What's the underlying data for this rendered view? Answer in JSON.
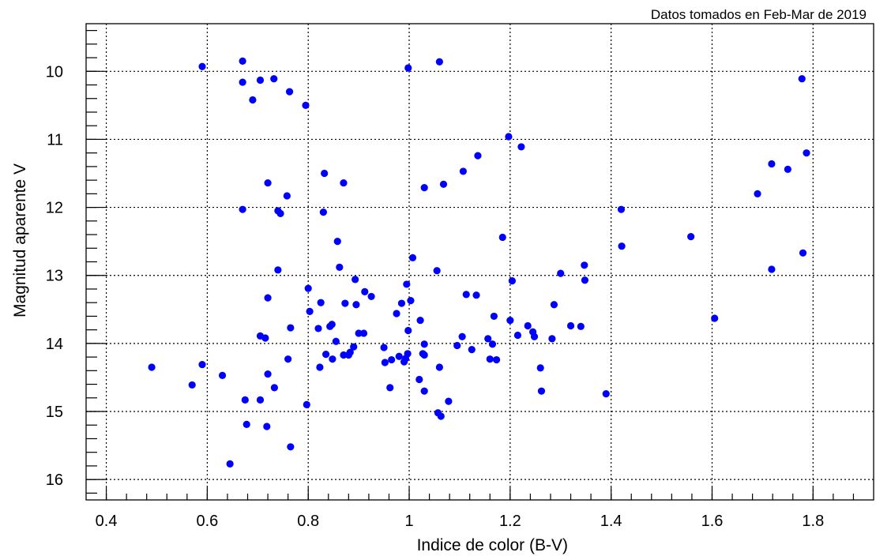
{
  "chart_data": {
    "type": "scatter",
    "subtitle": "Datos tomados en Feb-Mar de 2019",
    "xlabel": "Indice de color (B-V)",
    "ylabel": "Magnitud aparente  V",
    "xlim": [
      0.36,
      1.92
    ],
    "ylim": [
      16.3,
      9.3
    ],
    "y_inverted": true,
    "grid": true,
    "marker_color": "#0000ff",
    "x_ticks": [
      0.4,
      0.6,
      0.8,
      1,
      1.2,
      1.4,
      1.6,
      1.8
    ],
    "x_tick_labels": [
      "0.4",
      "0.6",
      "0.8",
      "1",
      "1.2",
      "1.4",
      "1.6",
      "1.8"
    ],
    "y_ticks": [
      10,
      11,
      12,
      13,
      14,
      15,
      16
    ],
    "y_tick_labels": [
      "10",
      "11",
      "12",
      "13",
      "14",
      "15",
      "16"
    ],
    "points": [
      [
        0.49,
        14.35
      ],
      [
        0.57,
        14.61
      ],
      [
        0.59,
        14.31
      ],
      [
        0.59,
        9.93
      ],
      [
        0.63,
        14.47
      ],
      [
        0.645,
        15.77
      ],
      [
        0.67,
        9.85
      ],
      [
        0.67,
        10.16
      ],
      [
        0.675,
        14.83
      ],
      [
        0.678,
        15.19
      ],
      [
        0.67,
        12.03
      ],
      [
        0.69,
        10.42
      ],
      [
        0.705,
        10.13
      ],
      [
        0.705,
        13.89
      ],
      [
        0.705,
        14.83
      ],
      [
        0.715,
        13.92
      ],
      [
        0.718,
        15.22
      ],
      [
        0.72,
        11.64
      ],
      [
        0.72,
        13.33
      ],
      [
        0.72,
        14.45
      ],
      [
        0.732,
        10.11
      ],
      [
        0.733,
        14.65
      ],
      [
        0.74,
        12.92
      ],
      [
        0.74,
        12.05
      ],
      [
        0.745,
        12.09
      ],
      [
        0.758,
        11.83
      ],
      [
        0.76,
        14.23
      ],
      [
        0.763,
        10.3
      ],
      [
        0.765,
        15.52
      ],
      [
        0.765,
        13.77
      ],
      [
        0.795,
        10.5
      ],
      [
        0.797,
        14.9
      ],
      [
        0.8,
        13.19
      ],
      [
        0.803,
        13.53
      ],
      [
        0.82,
        13.78
      ],
      [
        0.823,
        14.35
      ],
      [
        0.825,
        13.4
      ],
      [
        0.83,
        12.07
      ],
      [
        0.832,
        11.5
      ],
      [
        0.835,
        14.16
      ],
      [
        0.843,
        13.75
      ],
      [
        0.847,
        13.72
      ],
      [
        0.848,
        14.23
      ],
      [
        0.855,
        13.97
      ],
      [
        0.858,
        12.5
      ],
      [
        0.862,
        12.88
      ],
      [
        0.87,
        11.64
      ],
      [
        0.87,
        14.17
      ],
      [
        0.873,
        13.41
      ],
      [
        0.88,
        14.17
      ],
      [
        0.883,
        14.13
      ],
      [
        0.89,
        14.05
      ],
      [
        0.893,
        13.06
      ],
      [
        0.895,
        13.43
      ],
      [
        0.9,
        13.85
      ],
      [
        0.91,
        13.85
      ],
      [
        0.912,
        13.24
      ],
      [
        0.925,
        13.31
      ],
      [
        0.95,
        14.06
      ],
      [
        0.952,
        14.28
      ],
      [
        0.962,
        14.65
      ],
      [
        0.965,
        14.24
      ],
      [
        0.975,
        13.56
      ],
      [
        0.98,
        14.19
      ],
      [
        0.985,
        13.41
      ],
      [
        0.99,
        14.27
      ],
      [
        0.993,
        14.22
      ],
      [
        0.995,
        13.13
      ],
      [
        0.997,
        14.15
      ],
      [
        0.998,
        9.95
      ],
      [
        0.998,
        13.81
      ],
      [
        1.003,
        13.37
      ],
      [
        1.007,
        12.74
      ],
      [
        1.02,
        14.53
      ],
      [
        1.022,
        13.66
      ],
      [
        1.027,
        14.15
      ],
      [
        1.03,
        11.71
      ],
      [
        1.03,
        14.17
      ],
      [
        1.03,
        14.7
      ],
      [
        1.03,
        14.01
      ],
      [
        1.055,
        12.93
      ],
      [
        1.057,
        15.02
      ],
      [
        1.06,
        9.86
      ],
      [
        1.06,
        14.35
      ],
      [
        1.063,
        15.07
      ],
      [
        1.068,
        11.66
      ],
      [
        1.078,
        14.85
      ],
      [
        1.095,
        14.03
      ],
      [
        1.105,
        13.9
      ],
      [
        1.107,
        11.47
      ],
      [
        1.113,
        13.28
      ],
      [
        1.124,
        14.09
      ],
      [
        1.133,
        13.29
      ],
      [
        1.136,
        11.24
      ],
      [
        1.156,
        13.93
      ],
      [
        1.16,
        14.23
      ],
      [
        1.165,
        14.01
      ],
      [
        1.168,
        13.6
      ],
      [
        1.173,
        14.24
      ],
      [
        1.185,
        12.44
      ],
      [
        1.197,
        10.96
      ],
      [
        1.2,
        13.66
      ],
      [
        1.204,
        13.08
      ],
      [
        1.215,
        13.88
      ],
      [
        1.222,
        11.11
      ],
      [
        1.235,
        13.74
      ],
      [
        1.245,
        13.83
      ],
      [
        1.248,
        13.9
      ],
      [
        1.26,
        14.36
      ],
      [
        1.262,
        14.7
      ],
      [
        1.283,
        13.93
      ],
      [
        1.287,
        13.43
      ],
      [
        1.3,
        12.97
      ],
      [
        1.32,
        13.74
      ],
      [
        1.34,
        13.75
      ],
      [
        1.347,
        12.85
      ],
      [
        1.348,
        13.07
      ],
      [
        1.39,
        14.74
      ],
      [
        1.42,
        12.03
      ],
      [
        1.421,
        12.57
      ],
      [
        1.558,
        12.43
      ],
      [
        1.605,
        13.63
      ],
      [
        1.69,
        11.8
      ],
      [
        1.718,
        11.36
      ],
      [
        1.718,
        12.91
      ],
      [
        1.75,
        11.44
      ],
      [
        1.778,
        10.11
      ],
      [
        1.78,
        12.67
      ],
      [
        1.787,
        11.2
      ]
    ]
  }
}
